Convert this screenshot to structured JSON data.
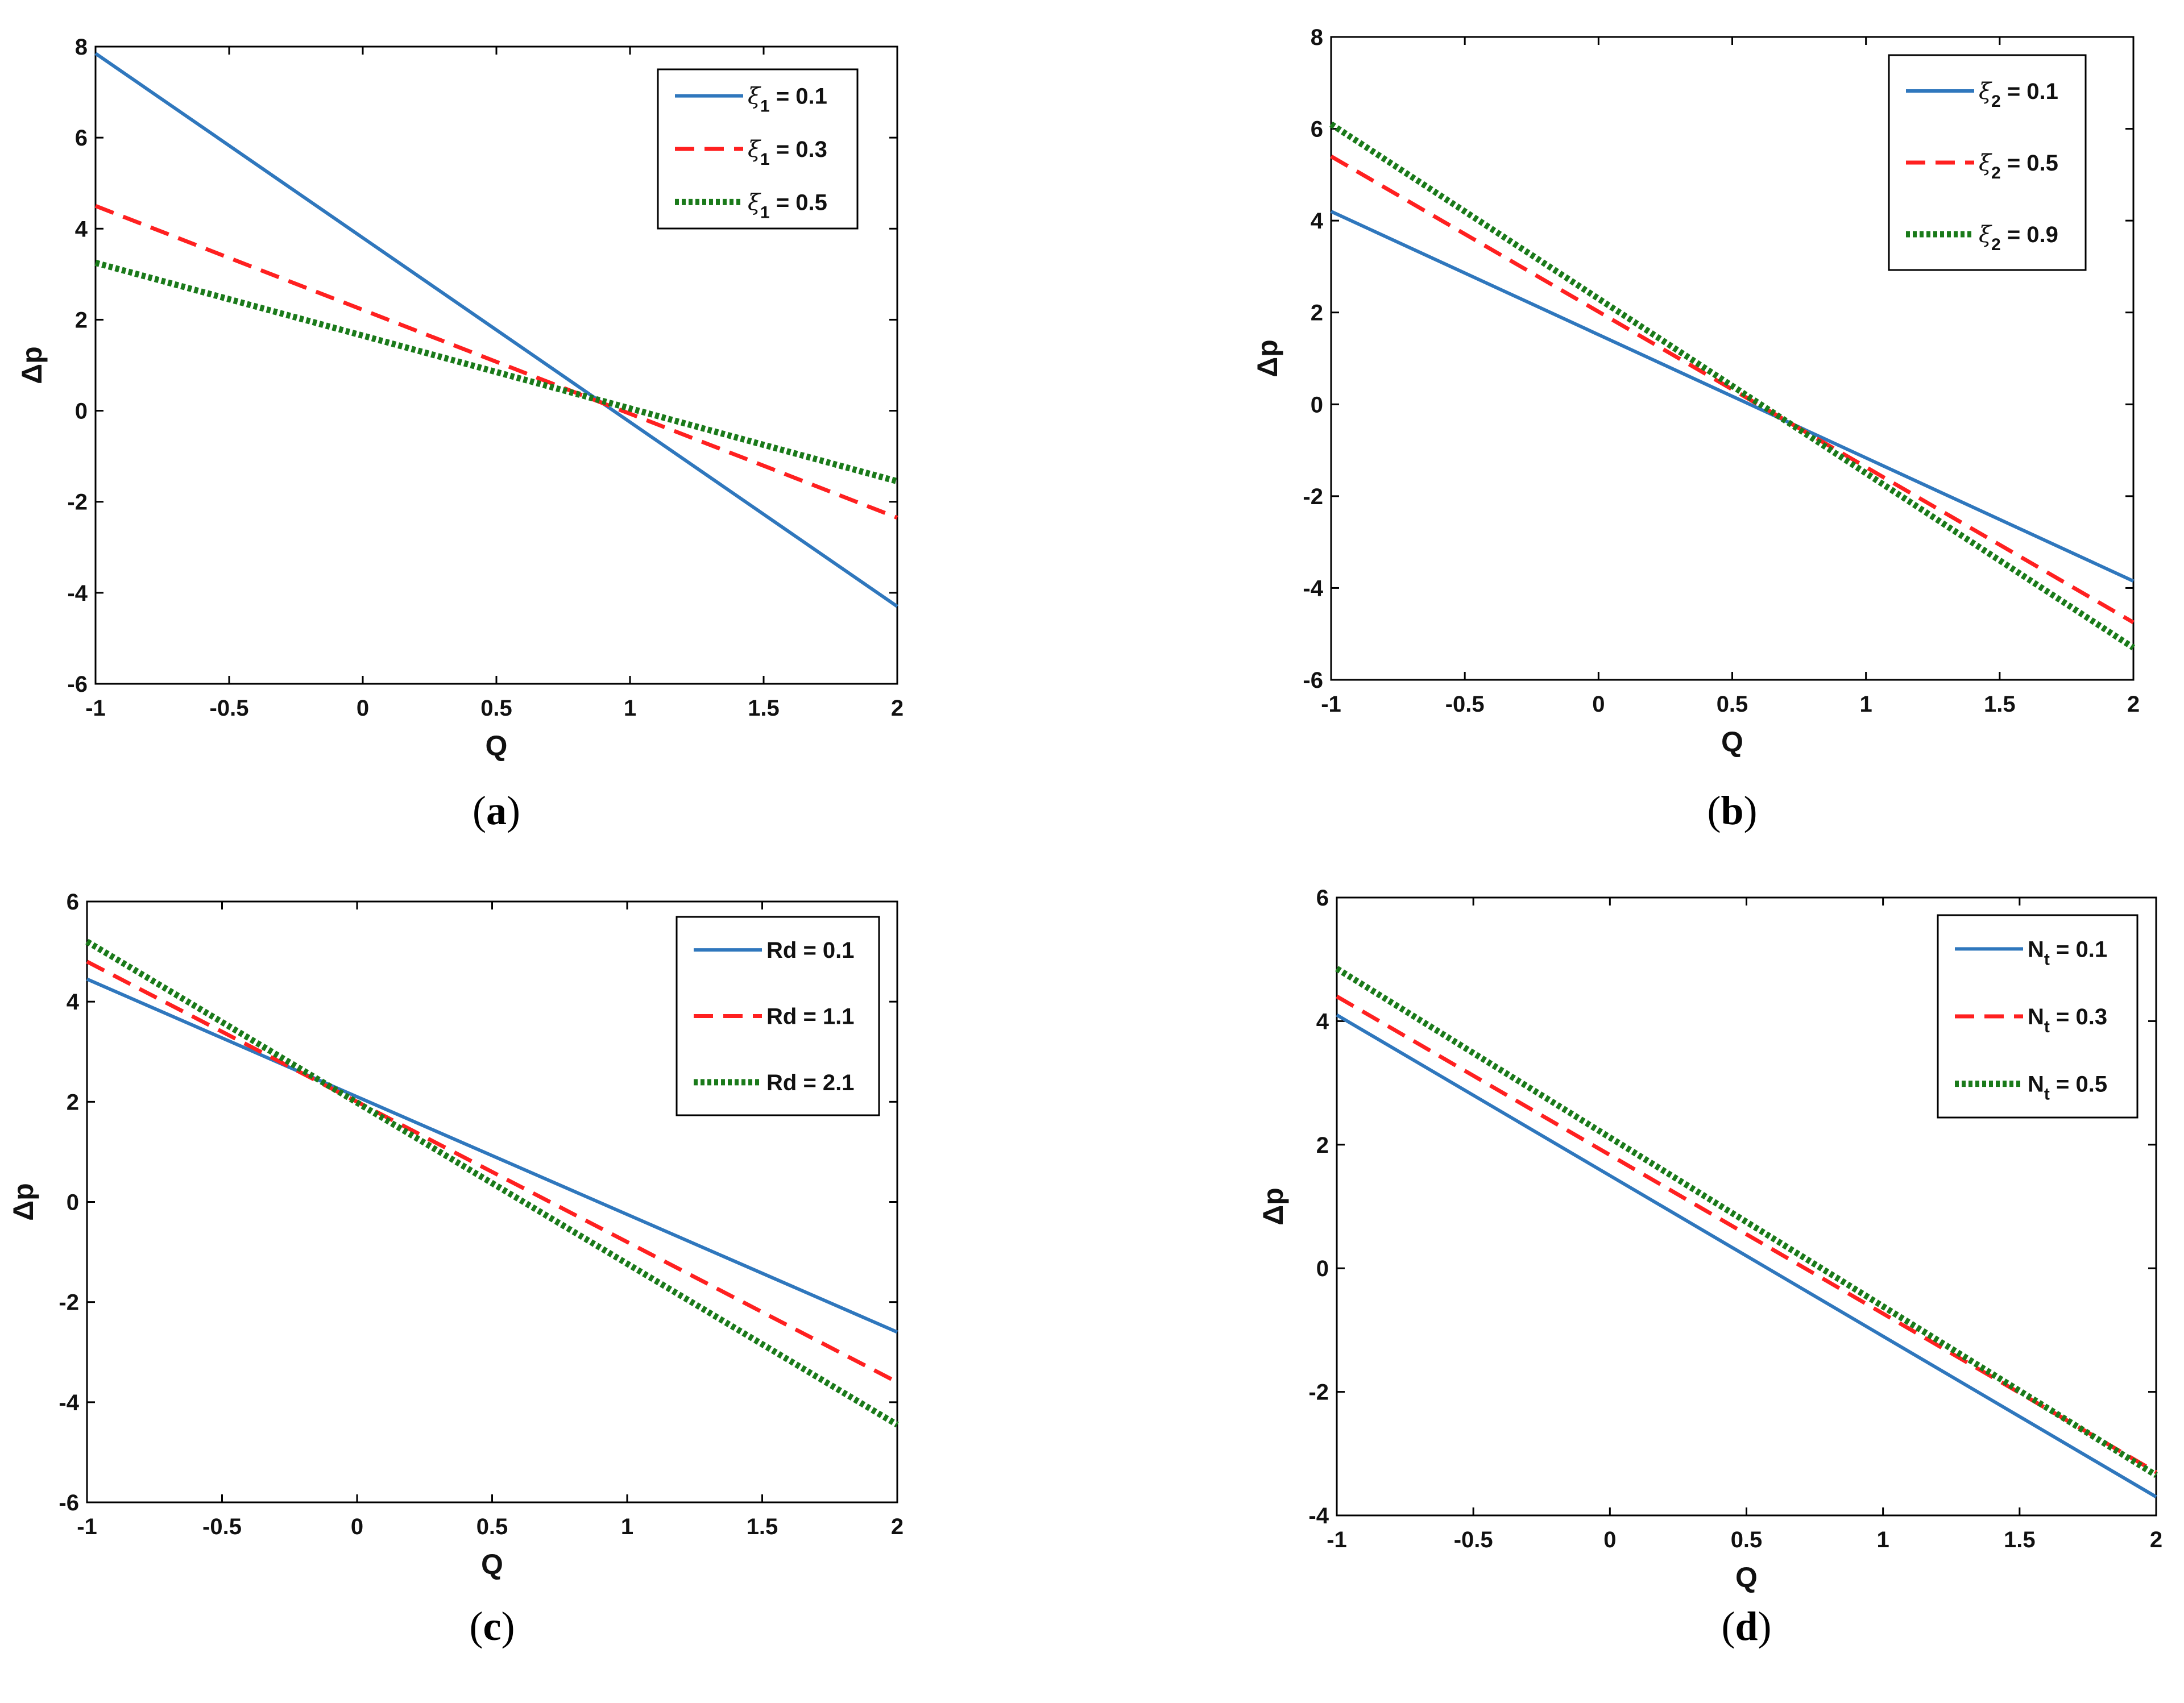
{
  "chart_data": [
    {
      "id": "a",
      "type": "line",
      "caption": "a",
      "xlabel": "Q",
      "ylabel": "Δp",
      "xlim": [
        -1,
        2
      ],
      "ylim": [
        -6,
        8
      ],
      "xticks": [
        "-1",
        "-0.5",
        "0",
        "0.5",
        "1",
        "1.5",
        "2"
      ],
      "yticks": [
        "-6",
        "-4",
        "-2",
        "0",
        "2",
        "4",
        "6",
        "8"
      ],
      "legend_position": "top-right",
      "series": [
        {
          "name": "ξ1 = 0.1",
          "legend": {
            "symbol": "ξ",
            "sub": "1",
            "rest": " = 0.1"
          },
          "x": [
            -1,
            2
          ],
          "y": [
            7.85,
            -4.3
          ],
          "color": "#2f77bd",
          "style": "solid"
        },
        {
          "name": "ξ1 = 0.3",
          "legend": {
            "symbol": "ξ",
            "sub": "1",
            "rest": " = 0.3"
          },
          "x": [
            -1,
            2
          ],
          "y": [
            4.5,
            -2.35
          ],
          "color": "#ff2020",
          "style": "dashed"
        },
        {
          "name": "ξ1 = 0.5",
          "legend": {
            "symbol": "ξ",
            "sub": "1",
            "rest": " = 0.5"
          },
          "x": [
            -1,
            2
          ],
          "y": [
            3.25,
            -1.55
          ],
          "color": "#1a7a1a",
          "style": "dotted"
        }
      ]
    },
    {
      "id": "b",
      "type": "line",
      "caption": "b",
      "xlabel": "Q",
      "ylabel": "Δp",
      "xlim": [
        -1,
        2
      ],
      "ylim": [
        -6,
        8
      ],
      "xticks": [
        "-1",
        "-0.5",
        "0",
        "0.5",
        "1",
        "1.5",
        "2"
      ],
      "yticks": [
        "-6",
        "-4",
        "-2",
        "0",
        "2",
        "4",
        "6",
        "8"
      ],
      "legend_position": "top-right",
      "series": [
        {
          "name": "ξ2 = 0.1",
          "legend": {
            "symbol": "ξ",
            "sub": "2",
            "rest": " = 0.1"
          },
          "x": [
            -1,
            2
          ],
          "y": [
            4.2,
            -3.85
          ],
          "color": "#2f77bd",
          "style": "solid"
        },
        {
          "name": "ξ2 = 0.5",
          "legend": {
            "symbol": "ξ",
            "sub": "2",
            "rest": " = 0.5"
          },
          "x": [
            -1,
            2
          ],
          "y": [
            5.4,
            -4.75
          ],
          "color": "#ff2020",
          "style": "dashed"
        },
        {
          "name": "ξ2 = 0.9",
          "legend": {
            "symbol": "ξ",
            "sub": "2",
            "rest": " = 0.9"
          },
          "x": [
            -1,
            2
          ],
          "y": [
            6.1,
            -5.3
          ],
          "color": "#1a7a1a",
          "style": "dotted"
        }
      ]
    },
    {
      "id": "c",
      "type": "line",
      "caption": "c",
      "xlabel": "Q",
      "ylabel": "Δp",
      "xlim": [
        -1,
        2
      ],
      "ylim": [
        -6,
        6
      ],
      "xticks": [
        "-1",
        "-0.5",
        "0",
        "0.5",
        "1",
        "1.5",
        "2"
      ],
      "yticks": [
        "-6",
        "-4",
        "-2",
        "0",
        "2",
        "4",
        "6"
      ],
      "legend_position": "top-right",
      "series": [
        {
          "name": "Rd = 0.1",
          "legend": {
            "symbol": "Rd",
            "sub": "",
            "rest": " = 0.1"
          },
          "x": [
            -1,
            2
          ],
          "y": [
            4.45,
            -2.6
          ],
          "color": "#2f77bd",
          "style": "solid"
        },
        {
          "name": "Rd = 1.1",
          "legend": {
            "symbol": "Rd",
            "sub": "",
            "rest": " = 1.1"
          },
          "x": [
            -1,
            2
          ],
          "y": [
            4.8,
            -3.6
          ],
          "color": "#ff2020",
          "style": "dashed"
        },
        {
          "name": "Rd = 2.1",
          "legend": {
            "symbol": "Rd",
            "sub": "",
            "rest": " = 2.1"
          },
          "x": [
            -1,
            2
          ],
          "y": [
            5.2,
            -4.45
          ],
          "color": "#1a7a1a",
          "style": "dotted"
        }
      ]
    },
    {
      "id": "d",
      "type": "line",
      "caption": "d",
      "xlabel": "Q",
      "ylabel": "Δp",
      "xlim": [
        -1,
        2
      ],
      "ylim": [
        -4,
        6
      ],
      "xticks": [
        "-1",
        "-0.5",
        "0",
        "0.5",
        "1",
        "1.5",
        "2"
      ],
      "yticks": [
        "-4",
        "-2",
        "0",
        "2",
        "4",
        "6"
      ],
      "legend_position": "top-right",
      "series": [
        {
          "name": "Nt = 0.1",
          "legend": {
            "symbol": "N",
            "sub": "t",
            "rest": " = 0.1"
          },
          "x": [
            -1,
            2
          ],
          "y": [
            4.1,
            -3.7
          ],
          "color": "#2f77bd",
          "style": "solid"
        },
        {
          "name": "Nt = 0.3",
          "legend": {
            "symbol": "N",
            "sub": "t",
            "rest": " = 0.3"
          },
          "x": [
            -1,
            2
          ],
          "y": [
            4.4,
            -3.3
          ],
          "color": "#ff2020",
          "style": "dashed"
        },
        {
          "name": "Nt = 0.5",
          "legend": {
            "symbol": "N",
            "sub": "t",
            "rest": " = 0.5"
          },
          "x": [
            -1,
            2
          ],
          "y": [
            4.85,
            -3.35
          ],
          "color": "#1a7a1a",
          "style": "dotted"
        }
      ]
    }
  ]
}
